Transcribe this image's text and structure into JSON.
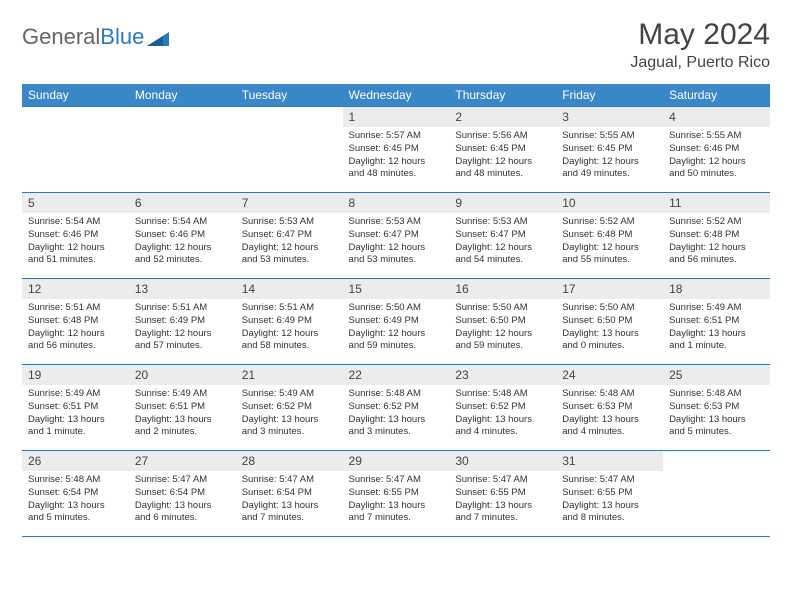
{
  "brand": {
    "part1": "General",
    "part2": "Blue"
  },
  "title": "May 2024",
  "location": "Jagual, Puerto Rico",
  "colors": {
    "header_bg": "#3a87c7",
    "border": "#2e79b8",
    "daynum_bg": "#ececec",
    "brand_blue": "#2e79b8"
  },
  "weekdays": [
    "Sunday",
    "Monday",
    "Tuesday",
    "Wednesday",
    "Thursday",
    "Friday",
    "Saturday"
  ],
  "weeks": [
    [
      {
        "n": "",
        "sr": "",
        "ss": "",
        "dl1": "",
        "dl2": ""
      },
      {
        "n": "",
        "sr": "",
        "ss": "",
        "dl1": "",
        "dl2": ""
      },
      {
        "n": "",
        "sr": "",
        "ss": "",
        "dl1": "",
        "dl2": ""
      },
      {
        "n": "1",
        "sr": "Sunrise: 5:57 AM",
        "ss": "Sunset: 6:45 PM",
        "dl1": "Daylight: 12 hours",
        "dl2": "and 48 minutes."
      },
      {
        "n": "2",
        "sr": "Sunrise: 5:56 AM",
        "ss": "Sunset: 6:45 PM",
        "dl1": "Daylight: 12 hours",
        "dl2": "and 48 minutes."
      },
      {
        "n": "3",
        "sr": "Sunrise: 5:55 AM",
        "ss": "Sunset: 6:45 PM",
        "dl1": "Daylight: 12 hours",
        "dl2": "and 49 minutes."
      },
      {
        "n": "4",
        "sr": "Sunrise: 5:55 AM",
        "ss": "Sunset: 6:46 PM",
        "dl1": "Daylight: 12 hours",
        "dl2": "and 50 minutes."
      }
    ],
    [
      {
        "n": "5",
        "sr": "Sunrise: 5:54 AM",
        "ss": "Sunset: 6:46 PM",
        "dl1": "Daylight: 12 hours",
        "dl2": "and 51 minutes."
      },
      {
        "n": "6",
        "sr": "Sunrise: 5:54 AM",
        "ss": "Sunset: 6:46 PM",
        "dl1": "Daylight: 12 hours",
        "dl2": "and 52 minutes."
      },
      {
        "n": "7",
        "sr": "Sunrise: 5:53 AM",
        "ss": "Sunset: 6:47 PM",
        "dl1": "Daylight: 12 hours",
        "dl2": "and 53 minutes."
      },
      {
        "n": "8",
        "sr": "Sunrise: 5:53 AM",
        "ss": "Sunset: 6:47 PM",
        "dl1": "Daylight: 12 hours",
        "dl2": "and 53 minutes."
      },
      {
        "n": "9",
        "sr": "Sunrise: 5:53 AM",
        "ss": "Sunset: 6:47 PM",
        "dl1": "Daylight: 12 hours",
        "dl2": "and 54 minutes."
      },
      {
        "n": "10",
        "sr": "Sunrise: 5:52 AM",
        "ss": "Sunset: 6:48 PM",
        "dl1": "Daylight: 12 hours",
        "dl2": "and 55 minutes."
      },
      {
        "n": "11",
        "sr": "Sunrise: 5:52 AM",
        "ss": "Sunset: 6:48 PM",
        "dl1": "Daylight: 12 hours",
        "dl2": "and 56 minutes."
      }
    ],
    [
      {
        "n": "12",
        "sr": "Sunrise: 5:51 AM",
        "ss": "Sunset: 6:48 PM",
        "dl1": "Daylight: 12 hours",
        "dl2": "and 56 minutes."
      },
      {
        "n": "13",
        "sr": "Sunrise: 5:51 AM",
        "ss": "Sunset: 6:49 PM",
        "dl1": "Daylight: 12 hours",
        "dl2": "and 57 minutes."
      },
      {
        "n": "14",
        "sr": "Sunrise: 5:51 AM",
        "ss": "Sunset: 6:49 PM",
        "dl1": "Daylight: 12 hours",
        "dl2": "and 58 minutes."
      },
      {
        "n": "15",
        "sr": "Sunrise: 5:50 AM",
        "ss": "Sunset: 6:49 PM",
        "dl1": "Daylight: 12 hours",
        "dl2": "and 59 minutes."
      },
      {
        "n": "16",
        "sr": "Sunrise: 5:50 AM",
        "ss": "Sunset: 6:50 PM",
        "dl1": "Daylight: 12 hours",
        "dl2": "and 59 minutes."
      },
      {
        "n": "17",
        "sr": "Sunrise: 5:50 AM",
        "ss": "Sunset: 6:50 PM",
        "dl1": "Daylight: 13 hours",
        "dl2": "and 0 minutes."
      },
      {
        "n": "18",
        "sr": "Sunrise: 5:49 AM",
        "ss": "Sunset: 6:51 PM",
        "dl1": "Daylight: 13 hours",
        "dl2": "and 1 minute."
      }
    ],
    [
      {
        "n": "19",
        "sr": "Sunrise: 5:49 AM",
        "ss": "Sunset: 6:51 PM",
        "dl1": "Daylight: 13 hours",
        "dl2": "and 1 minute."
      },
      {
        "n": "20",
        "sr": "Sunrise: 5:49 AM",
        "ss": "Sunset: 6:51 PM",
        "dl1": "Daylight: 13 hours",
        "dl2": "and 2 minutes."
      },
      {
        "n": "21",
        "sr": "Sunrise: 5:49 AM",
        "ss": "Sunset: 6:52 PM",
        "dl1": "Daylight: 13 hours",
        "dl2": "and 3 minutes."
      },
      {
        "n": "22",
        "sr": "Sunrise: 5:48 AM",
        "ss": "Sunset: 6:52 PM",
        "dl1": "Daylight: 13 hours",
        "dl2": "and 3 minutes."
      },
      {
        "n": "23",
        "sr": "Sunrise: 5:48 AM",
        "ss": "Sunset: 6:52 PM",
        "dl1": "Daylight: 13 hours",
        "dl2": "and 4 minutes."
      },
      {
        "n": "24",
        "sr": "Sunrise: 5:48 AM",
        "ss": "Sunset: 6:53 PM",
        "dl1": "Daylight: 13 hours",
        "dl2": "and 4 minutes."
      },
      {
        "n": "25",
        "sr": "Sunrise: 5:48 AM",
        "ss": "Sunset: 6:53 PM",
        "dl1": "Daylight: 13 hours",
        "dl2": "and 5 minutes."
      }
    ],
    [
      {
        "n": "26",
        "sr": "Sunrise: 5:48 AM",
        "ss": "Sunset: 6:54 PM",
        "dl1": "Daylight: 13 hours",
        "dl2": "and 5 minutes."
      },
      {
        "n": "27",
        "sr": "Sunrise: 5:47 AM",
        "ss": "Sunset: 6:54 PM",
        "dl1": "Daylight: 13 hours",
        "dl2": "and 6 minutes."
      },
      {
        "n": "28",
        "sr": "Sunrise: 5:47 AM",
        "ss": "Sunset: 6:54 PM",
        "dl1": "Daylight: 13 hours",
        "dl2": "and 7 minutes."
      },
      {
        "n": "29",
        "sr": "Sunrise: 5:47 AM",
        "ss": "Sunset: 6:55 PM",
        "dl1": "Daylight: 13 hours",
        "dl2": "and 7 minutes."
      },
      {
        "n": "30",
        "sr": "Sunrise: 5:47 AM",
        "ss": "Sunset: 6:55 PM",
        "dl1": "Daylight: 13 hours",
        "dl2": "and 7 minutes."
      },
      {
        "n": "31",
        "sr": "Sunrise: 5:47 AM",
        "ss": "Sunset: 6:55 PM",
        "dl1": "Daylight: 13 hours",
        "dl2": "and 8 minutes."
      },
      {
        "n": "",
        "sr": "",
        "ss": "",
        "dl1": "",
        "dl2": ""
      }
    ]
  ]
}
